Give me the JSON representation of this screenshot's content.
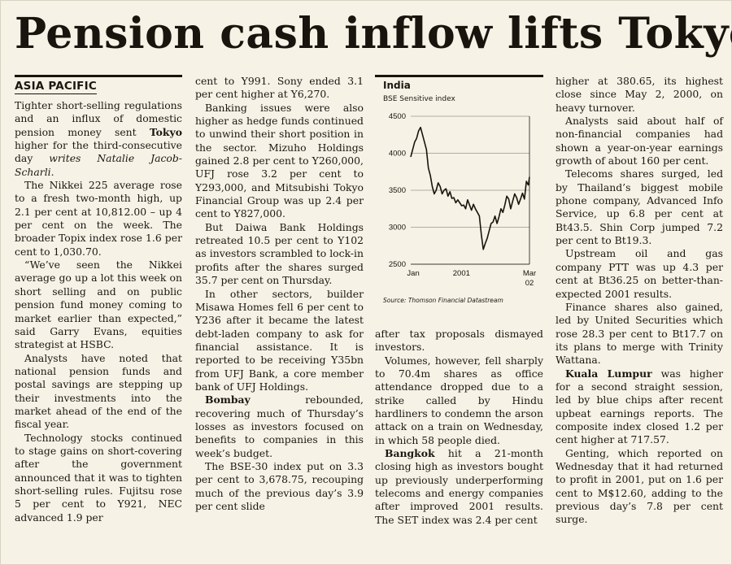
{
  "headline": "Pension cash inflow lifts Tokyo",
  "section_label": "ASIA PACIFIC",
  "col1": {
    "lead_1": "Tighter short-selling regulations and an influx of domestic pension money sent ",
    "lead_tokyo": "Tokyo",
    "lead_2": " higher for the third-consecutive day ",
    "byline": "writes Natalie Jacob-Scharli.",
    "p2": "The Nikkei 225 average rose to a fresh two-month high, up 2.1 per cent at 10,812.00 – up 4 per cent on the week. The broader Topix index rose 1.6 per cent to 1,030.70.",
    "p3": "“We’ve seen the Nikkei average go up a lot this week on short selling and on public pension fund money coming to market earlier than expected,” said Garry Evans, equities strategist at HSBC.",
    "p4": "Analysts have noted that national pension funds and postal savings are stepping up their investments into the market ahead of the end of the fiscal year.",
    "p5": "Technology stocks continued to stage gains on short-covering after the government announced that it was to tighten short-selling rules. Fujitsu rose 5 per cent to Y921, NEC advanced 1.9 per"
  },
  "col2": {
    "p1": "cent to Y991. Sony ended 3.1 per cent higher at Y6,270.",
    "p2": "Banking issues were also higher as hedge funds continued to unwind their short position in the sector. Mizuho Holdings gained 2.8 per cent to Y260,000, UFJ rose 3.2 per cent to Y293,000, and Mitsubishi Tokyo Financial Group was up 2.4 per cent to Y827,000.",
    "p3": "But Daiwa Bank Holdings retreated 10.5 per cent to Y102 as investors scrambled to lock-in profits after the shares surged 35.7 per cent on Thursday.",
    "p4": "In other sectors, builder Misawa Homes fell 6 per cent to Y236 after it became the latest debt-laden company to ask for financial assistance. It is reported to be receiving Y35bn from UFJ Bank, a core member bank of UFJ Holdings.",
    "p5_city": "Bombay",
    "p5": " rebounded, recovering much of Thursday’s losses as investors focused on benefits to companies in this week’s budget.",
    "p6": "The BSE-30 index put on 3.3 per cent to 3,678.75, recouping much of the previous day’s 3.9 per cent slide"
  },
  "col3": {
    "p1": "after tax proposals dismayed investors.",
    "p2": "Volumes, however, fell sharply to 70.4m shares as office attendance dropped due to a strike called by Hindu hardliners to condemn the arson attack on a train on Wednesday, in which 58 people died.",
    "p3_city": "Bangkok",
    "p3": " hit a 21-month closing high as investors bought up previously underperforming telecoms and energy companies after improved 2001 results. The SET index was 2.4 per cent"
  },
  "col4": {
    "p1": "higher at 380.65, its highest close since May 2, 2000, on heavy turnover.",
    "p2": "Analysts said about half of non-financial companies had shown a year-on-year earnings growth of about 160 per cent.",
    "p3": "Telecoms shares surged, led by Thailand’s biggest mobile phone company, Advanced Info Service, up 6.8 per cent at Bt43.5. Shin Corp jumped 7.2 per cent to Bt19.3.",
    "p4": "Upstream oil and gas company PTT was up 4.3 per cent at Bt36.25 on better-than-expected 2001 results.",
    "p5": "Finance shares also gained, led by United Securities which rose 28.3 per cent to Bt17.7 on its plans to merge with Trinity Wattana.",
    "p6_city": "Kuala Lumpur",
    "p6": " was higher for a second straight session, led by blue chips after recent upbeat earnings reports. The composite index closed 1.2 per cent higher at 717.57.",
    "p7": "Genting, which reported on Wednesday that it had returned to profit in 2001, put on 1.6 per cent to M$12.60, adding to the previous day’s 7.8 per cent surge."
  },
  "chart_data": {
    "type": "line",
    "title": "India",
    "subtitle": "BSE Sensitive index",
    "source": "Source: Thomson Financial Datastream",
    "x_tick_labels": [
      "Jan",
      "2001",
      "Mar 02"
    ],
    "y_ticks": [
      2500,
      3000,
      3500,
      4000,
      4500
    ],
    "ylim": [
      2500,
      4500
    ],
    "grid": true,
    "color": "#1a140e",
    "series": [
      {
        "x": [
          "2001-01-01",
          "2001-01-08",
          "2001-01-15",
          "2001-01-22",
          "2001-01-29",
          "2001-02-05",
          "2001-02-12",
          "2001-02-19",
          "2001-02-26",
          "2001-03-05",
          "2001-03-12",
          "2001-03-19",
          "2001-03-26",
          "2001-04-02",
          "2001-04-09",
          "2001-04-16",
          "2001-04-23",
          "2001-04-30",
          "2001-05-07",
          "2001-05-14",
          "2001-05-21",
          "2001-05-28",
          "2001-06-04",
          "2001-06-11",
          "2001-06-18",
          "2001-06-25",
          "2001-07-02",
          "2001-07-09",
          "2001-07-16",
          "2001-07-23",
          "2001-07-30",
          "2001-08-06",
          "2001-08-13",
          "2001-08-20",
          "2001-08-27",
          "2001-09-03",
          "2001-09-10",
          "2001-09-17",
          "2001-09-24",
          "2001-10-01",
          "2001-10-08",
          "2001-10-15",
          "2001-10-22",
          "2001-10-29",
          "2001-11-05",
          "2001-11-12",
          "2001-11-19",
          "2001-11-26",
          "2001-12-03",
          "2001-12-10",
          "2001-12-17",
          "2001-12-24",
          "2001-12-31",
          "2002-01-07",
          "2002-01-14",
          "2002-01-21",
          "2002-01-28",
          "2002-02-04",
          "2002-02-11",
          "2002-02-18",
          "2002-02-25",
          "2002-03-01"
        ],
        "y": [
          3950,
          4050,
          4150,
          4200,
          4300,
          4350,
          4250,
          4150,
          4050,
          3800,
          3700,
          3550,
          3450,
          3500,
          3600,
          3550,
          3450,
          3500,
          3520,
          3420,
          3480,
          3390,
          3400,
          3330,
          3370,
          3330,
          3290,
          3300,
          3250,
          3370,
          3300,
          3230,
          3310,
          3250,
          3200,
          3150,
          2900,
          2700,
          2780,
          2850,
          2950,
          3050,
          3070,
          3150,
          3050,
          3140,
          3250,
          3200,
          3300,
          3420,
          3380,
          3250,
          3350,
          3450,
          3400,
          3310,
          3380,
          3460,
          3380,
          3620,
          3570,
          3680
        ]
      }
    ]
  }
}
